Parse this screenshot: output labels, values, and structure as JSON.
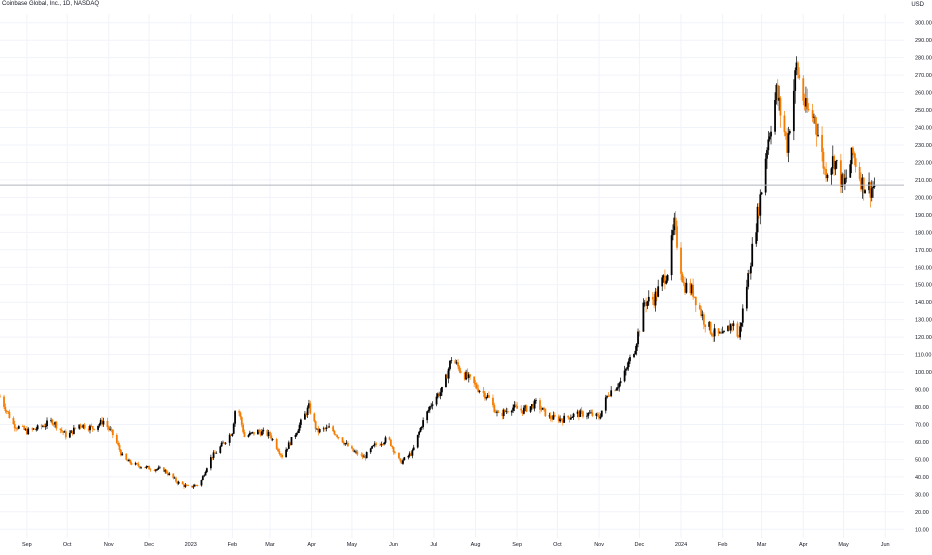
{
  "header": {
    "symbol_title": "Coinbase Global, Inc., 1D, NASDAQ",
    "currency": "USD"
  },
  "colors": {
    "up": "#000000",
    "down": "#f57c00",
    "grid": "#f0f3fa",
    "price_line": "#b2b5be",
    "axis_text": "#131722"
  },
  "chart_data": {
    "type": "candlestick",
    "title": "Coinbase Global, Inc., 1D, NASDAQ",
    "ylabel": "USD",
    "ylim": [
      5,
      305
    ],
    "xlim": [
      "2022-08-12",
      "2024-06-15"
    ],
    "grid": true,
    "y_scale": "linear",
    "current_price": 207,
    "y_ticks": [
      "10.00",
      "20.00",
      "30.00",
      "40.00",
      "50.00",
      "60.00",
      "70.00",
      "80.00",
      "90.00",
      "100.00",
      "110.00",
      "120.00",
      "130.00",
      "140.00",
      "150.00",
      "160.00",
      "170.00",
      "180.00",
      "190.00",
      "200.00",
      "210.00",
      "220.00",
      "230.00",
      "240.00",
      "250.00",
      "260.00",
      "270.00",
      "280.00",
      "290.00",
      "300.00"
    ],
    "x_ticks": [
      {
        "label": "Sep",
        "date": "2022-09-01"
      },
      {
        "label": "Oct",
        "date": "2022-10-01"
      },
      {
        "label": "Nov",
        "date": "2022-11-01"
      },
      {
        "label": "Dec",
        "date": "2022-12-01"
      },
      {
        "label": "2023",
        "date": "2023-01-01"
      },
      {
        "label": "Feb",
        "date": "2023-02-01"
      },
      {
        "label": "Mar",
        "date": "2023-03-01"
      },
      {
        "label": "Apr",
        "date": "2023-04-01"
      },
      {
        "label": "May",
        "date": "2023-05-01"
      },
      {
        "label": "Jun",
        "date": "2023-06-01"
      },
      {
        "label": "Jul",
        "date": "2023-07-01"
      },
      {
        "label": "Aug",
        "date": "2023-08-01"
      },
      {
        "label": "Sep",
        "date": "2023-09-01"
      },
      {
        "label": "Oct",
        "date": "2023-10-01"
      },
      {
        "label": "Nov",
        "date": "2023-11-01"
      },
      {
        "label": "Dec",
        "date": "2023-12-01"
      },
      {
        "label": "2024",
        "date": "2024-01-01"
      },
      {
        "label": "Feb",
        "date": "2024-02-01"
      },
      {
        "label": "Mar",
        "date": "2024-03-01"
      },
      {
        "label": "Apr",
        "date": "2024-04-01"
      },
      {
        "label": "May",
        "date": "2024-05-01"
      },
      {
        "label": "Jun",
        "date": "2024-06-01"
      }
    ],
    "price_path": [
      [
        "2022-08-12",
        86
      ],
      [
        "2022-08-22",
        70
      ],
      [
        "2022-09-01",
        66
      ],
      [
        "2022-09-10",
        68
      ],
      [
        "2022-09-20",
        72
      ],
      [
        "2022-10-01",
        63
      ],
      [
        "2022-10-10",
        70
      ],
      [
        "2022-10-20",
        68
      ],
      [
        "2022-10-28",
        72
      ],
      [
        "2022-11-05",
        63
      ],
      [
        "2022-11-12",
        50
      ],
      [
        "2022-11-20",
        47
      ],
      [
        "2022-12-01",
        45
      ],
      [
        "2022-12-12",
        44
      ],
      [
        "2022-12-22",
        37
      ],
      [
        "2022-12-30",
        34
      ],
      [
        "2023-01-08",
        36
      ],
      [
        "2023-01-15",
        50
      ],
      [
        "2023-01-22",
        56
      ],
      [
        "2023-02-01",
        66
      ],
      [
        "2023-02-04",
        84
      ],
      [
        "2023-02-10",
        63
      ],
      [
        "2023-02-20",
        66
      ],
      [
        "2023-03-01",
        64
      ],
      [
        "2023-03-10",
        52
      ],
      [
        "2023-03-20",
        65
      ],
      [
        "2023-03-30",
        80
      ],
      [
        "2023-04-05",
        66
      ],
      [
        "2023-04-15",
        68
      ],
      [
        "2023-04-25",
        60
      ],
      [
        "2023-05-01",
        55
      ],
      [
        "2023-05-10",
        51
      ],
      [
        "2023-05-18",
        58
      ],
      [
        "2023-05-28",
        62
      ],
      [
        "2023-06-06",
        48
      ],
      [
        "2023-06-15",
        54
      ],
      [
        "2023-06-22",
        70
      ],
      [
        "2023-07-01",
        85
      ],
      [
        "2023-07-08",
        90
      ],
      [
        "2023-07-14",
        108
      ],
      [
        "2023-07-22",
        100
      ],
      [
        "2023-08-01",
        92
      ],
      [
        "2023-08-10",
        86
      ],
      [
        "2023-08-18",
        75
      ],
      [
        "2023-08-28",
        80
      ],
      [
        "2023-09-05",
        78
      ],
      [
        "2023-09-15",
        82
      ],
      [
        "2023-09-25",
        74
      ],
      [
        "2023-10-05",
        73
      ],
      [
        "2023-10-15",
        76
      ],
      [
        "2023-10-25",
        76
      ],
      [
        "2023-11-01",
        74
      ],
      [
        "2023-11-08",
        88
      ],
      [
        "2023-11-18",
        95
      ],
      [
        "2023-11-28",
        115
      ],
      [
        "2023-12-05",
        140
      ],
      [
        "2023-12-12",
        142
      ],
      [
        "2023-12-22",
        158
      ],
      [
        "2023-12-27",
        184
      ],
      [
        "2024-01-03",
        150
      ],
      [
        "2024-01-10",
        146
      ],
      [
        "2024-01-18",
        130
      ],
      [
        "2024-01-25",
        122
      ],
      [
        "2024-02-01",
        120
      ],
      [
        "2024-02-08",
        128
      ],
      [
        "2024-02-13",
        120
      ],
      [
        "2024-02-19",
        150
      ],
      [
        "2024-02-26",
        185
      ],
      [
        "2024-03-01",
        205
      ],
      [
        "2024-03-05",
        230
      ],
      [
        "2024-03-12",
        260
      ],
      [
        "2024-03-20",
        230
      ],
      [
        "2024-03-27",
        275
      ],
      [
        "2024-04-03",
        250
      ],
      [
        "2024-04-10",
        245
      ],
      [
        "2024-04-17",
        215
      ],
      [
        "2024-04-24",
        222
      ],
      [
        "2024-05-01",
        206
      ],
      [
        "2024-05-08",
        225
      ],
      [
        "2024-05-15",
        208
      ],
      [
        "2024-05-21",
        205
      ],
      [
        "2024-05-25",
        207
      ]
    ]
  }
}
